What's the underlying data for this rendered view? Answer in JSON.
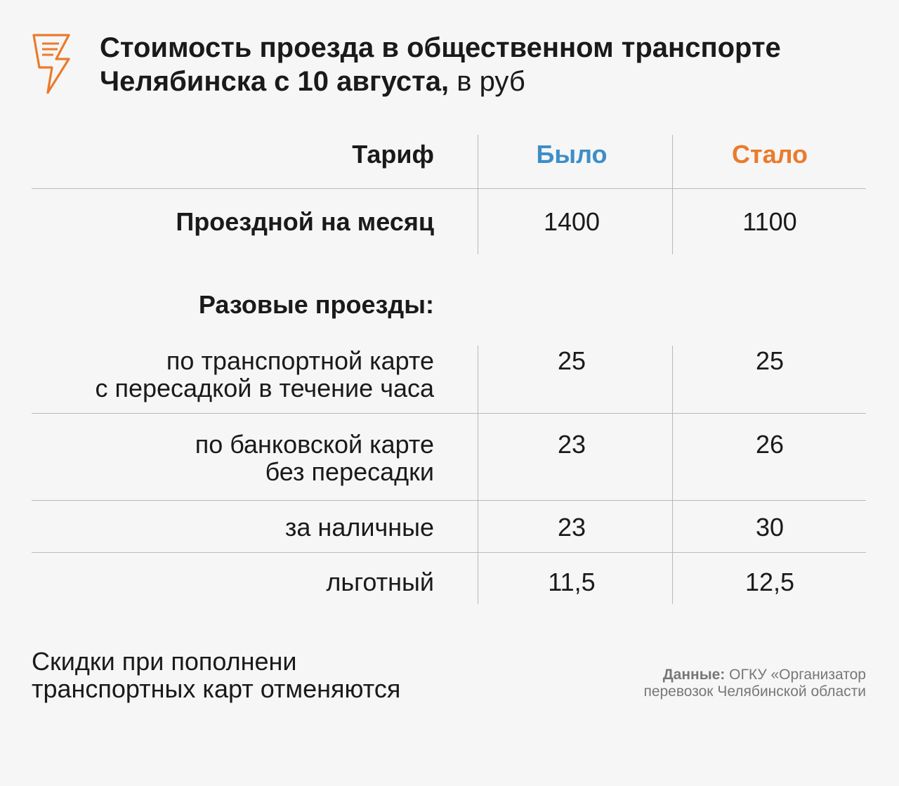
{
  "title": {
    "main": "Стоимость проезда в общественном транспорте Челябинска с 10 августа,",
    "unit": "в руб"
  },
  "chart_data": {
    "type": "table",
    "columns": [
      "Тариф",
      "Было",
      "Стало"
    ],
    "rows": [
      {
        "label": "Проездной на месяц",
        "was": "1400",
        "now": "1100"
      },
      {
        "label": "Разовые проезды:",
        "was": "",
        "now": ""
      },
      {
        "label": "по транспортной карте с пересадкой в течение часа",
        "was": "25",
        "now": "25"
      },
      {
        "label": "по банковской карте без пересадки",
        "was": "23",
        "now": "26"
      },
      {
        "label": "за наличные",
        "was": "23",
        "now": "30"
      },
      {
        "label": "льготный",
        "was": "11,5",
        "now": "12,5"
      }
    ]
  },
  "row_lines": {
    "r2": [
      "по транспортной карте",
      "с пересадкой в течение часа"
    ],
    "r3": [
      "по банковской карте",
      "без пересадки"
    ]
  },
  "note": {
    "line1": "Скидки при пополнени",
    "line2": "транспортных карт отменяются"
  },
  "source": {
    "label": "Данные:",
    "line1": "ОГКУ «Организатор",
    "line2": "перевозок Челябинской области"
  },
  "colors": {
    "was": "#3d8ec8",
    "now": "#ea7b2c",
    "logo": "#ea7b2c"
  },
  "icons": {
    "logo": "lightning-document-icon"
  }
}
